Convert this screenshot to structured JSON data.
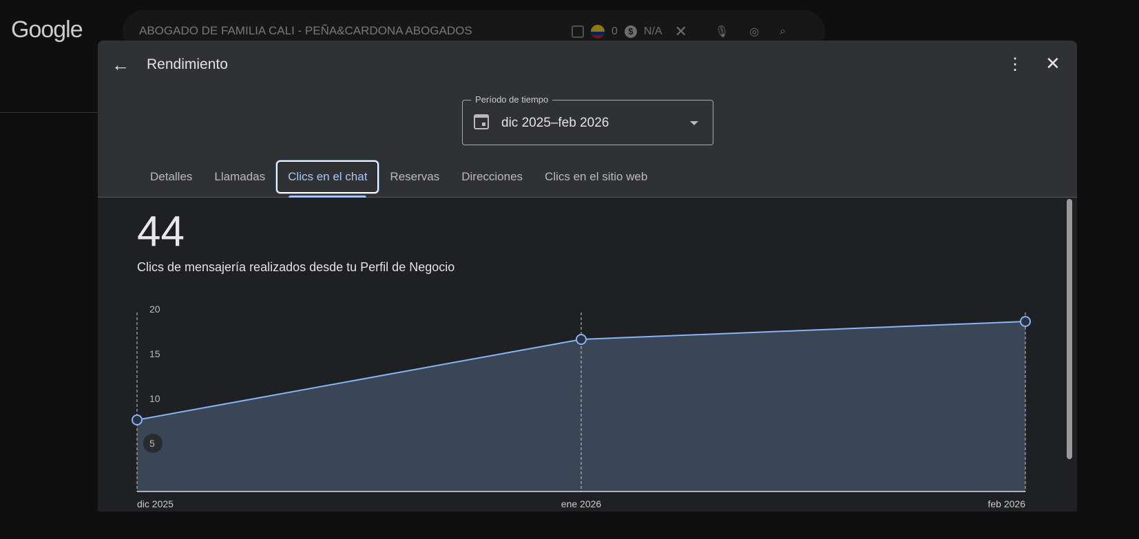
{
  "browser": {
    "logo": "Google",
    "query": "ABOGADO DE FAMILIA CALI - PEÑA&CARDONA ABOGADOS",
    "count": "0",
    "price": "N/A",
    "dollar": "$"
  },
  "dialog": {
    "back": "←",
    "title": "Rendimiento",
    "more": "⋮",
    "close": "✕",
    "period": {
      "label": "Período de tiempo",
      "value": "dic 2025–feb 2026"
    },
    "tabs": [
      "Detalles",
      "Llamadas",
      "Clics en el chat",
      "Reservas",
      "Direcciones",
      "Clics en el sitio web"
    ],
    "active_tab": "Clics en el chat",
    "total": "44",
    "description": "Clics de mensajería realizados desde tu Perfil de Negocio"
  },
  "chart_data": {
    "type": "area",
    "categories": [
      "dic 2025",
      "ene 2026",
      "feb 2026"
    ],
    "values": [
      8,
      17,
      19
    ],
    "yticks": [
      "20",
      "15",
      "10",
      "5"
    ],
    "ylim": [
      0,
      20
    ],
    "color": "#8ab4f8",
    "fill": "#3a4556"
  }
}
